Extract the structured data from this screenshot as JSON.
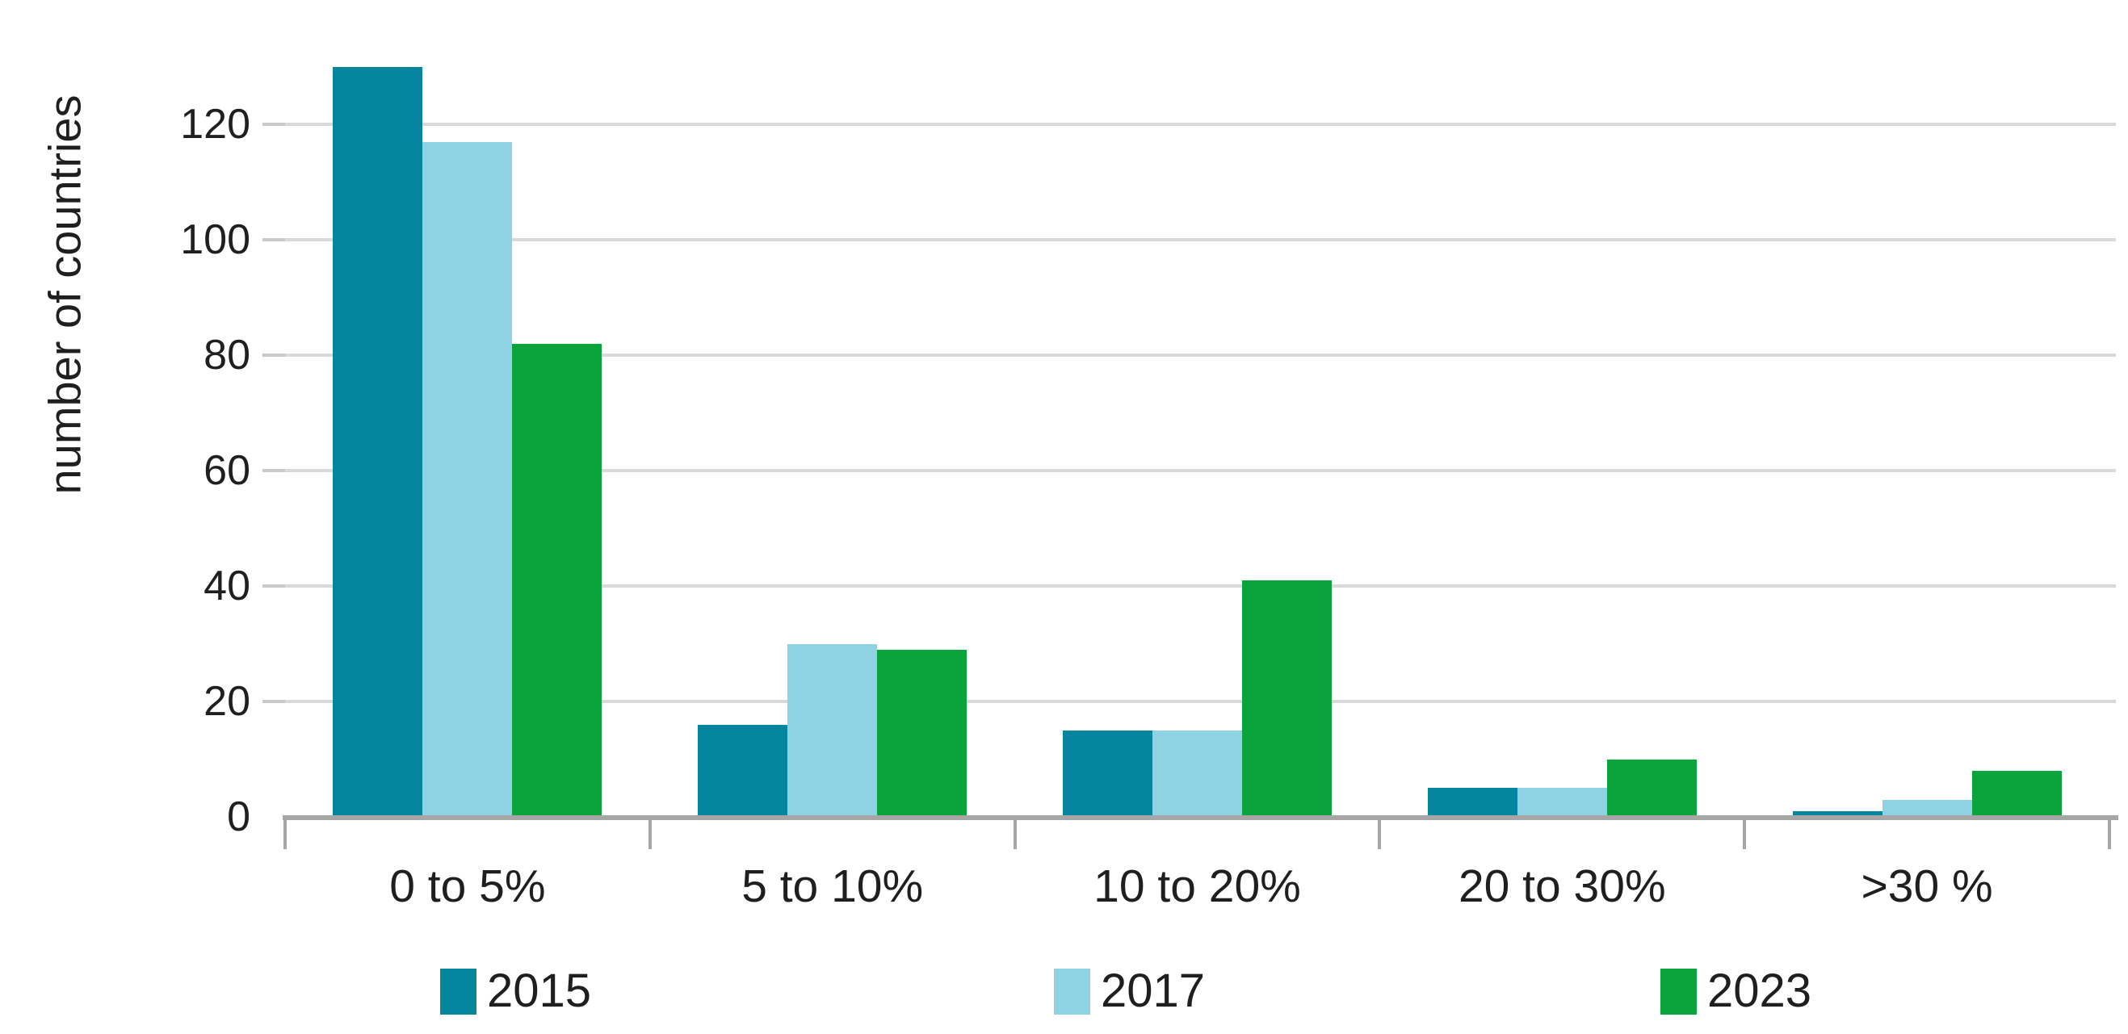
{
  "figure": {
    "background": "#ffffff",
    "text_color": "#1f1f1f"
  },
  "chart_data": {
    "type": "bar",
    "title": "",
    "xlabel": "",
    "ylabel": "number of countries",
    "categories": [
      "0 to 5%",
      "5 to 10%",
      "10 to 20%",
      "20 to 30%",
      ">30 %"
    ],
    "series": [
      {
        "name": "2015",
        "color": "#06869e",
        "values": [
          130,
          16,
          15,
          5,
          1
        ]
      },
      {
        "name": "2017",
        "color": "#8ed2e4",
        "values": [
          117,
          30,
          15,
          5,
          3
        ]
      },
      {
        "name": "2023",
        "color": "#0ba33b",
        "values": [
          82,
          29,
          41,
          10,
          8
        ]
      }
    ],
    "y_ticks": [
      0,
      20,
      40,
      60,
      80,
      100,
      120
    ],
    "ylim": [
      0,
      136
    ],
    "grid": "horizontal",
    "legend_position": "bottom",
    "colors": {
      "gridline": "#d9d9d9",
      "axis_line": "#a6a6a6",
      "tick_stub": "#c9c9c9"
    }
  }
}
